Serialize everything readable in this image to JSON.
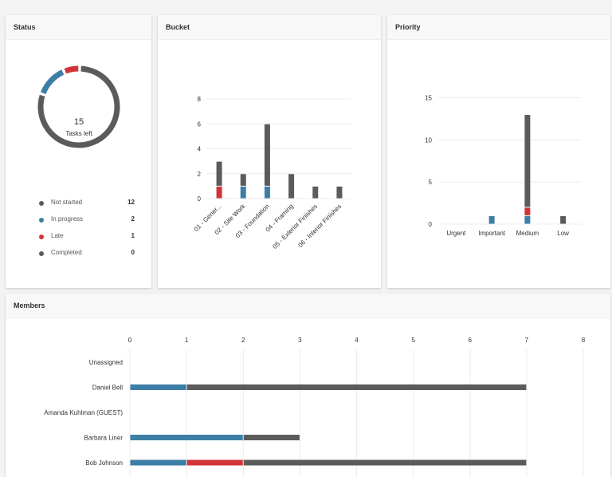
{
  "colors": {
    "not_started": "#5b5b5b",
    "in_progress": "#3d7ea6",
    "late": "#d13438",
    "completed": "#5b5b5b"
  },
  "status": {
    "title": "Status",
    "tasks_left_count": "15",
    "tasks_left_label": "Tasks left",
    "legend": [
      {
        "label": "Not started",
        "value": "12",
        "color_key": "not_started"
      },
      {
        "label": "In progress",
        "value": "2",
        "color_key": "in_progress"
      },
      {
        "label": "Late",
        "value": "1",
        "color_key": "late"
      },
      {
        "label": "Completed",
        "value": "0",
        "color_key": "completed"
      }
    ]
  },
  "bucket": {
    "title": "Bucket"
  },
  "priority": {
    "title": "Priority"
  },
  "members": {
    "title": "Members"
  },
  "chart_data": [
    {
      "type": "pie",
      "variant": "donut",
      "categories": [
        "Not started",
        "In progress",
        "Late",
        "Completed"
      ],
      "values": [
        12,
        2,
        1,
        0
      ]
    },
    {
      "type": "bar",
      "stacked": true,
      "categories": [
        "01 - Gener...",
        "02 - Site Work",
        "03 - Foundation",
        "04 - Framing",
        "05 - Exterior Finishes",
        "06 - Interior Finishes"
      ],
      "series": [
        {
          "status": "late",
          "values": [
            1,
            0,
            0,
            0,
            0,
            0
          ]
        },
        {
          "status": "in_progress",
          "values": [
            0,
            1,
            1,
            0,
            0,
            0
          ]
        },
        {
          "status": "not_started",
          "values": [
            2,
            1,
            5,
            2,
            1,
            1
          ]
        }
      ],
      "yticks": [
        0,
        2,
        4,
        6,
        8
      ],
      "ylim": [
        0,
        8
      ],
      "grid": true
    },
    {
      "type": "bar",
      "stacked": true,
      "categories": [
        "Urgent",
        "Important",
        "Medium",
        "Low"
      ],
      "series": [
        {
          "status": "in_progress",
          "values": [
            0,
            1,
            1,
            0
          ]
        },
        {
          "status": "late",
          "values": [
            0,
            0,
            1,
            0
          ]
        },
        {
          "status": "not_started",
          "values": [
            0,
            0,
            11,
            1
          ]
        }
      ],
      "yticks": [
        0,
        5,
        10,
        15
      ],
      "ylim": [
        0,
        17.5
      ],
      "grid": true
    },
    {
      "type": "bar",
      "orientation": "horizontal",
      "stacked": true,
      "categories": [
        "Unassigned",
        "Daniel Bell",
        "Amanda Kuhlman (GUEST)",
        "Barbara Liner",
        "Bob Johnson"
      ],
      "series": [
        {
          "status": "in_progress",
          "values": [
            0,
            1,
            0,
            2,
            1
          ]
        },
        {
          "status": "late",
          "values": [
            0,
            0,
            0,
            0,
            1
          ]
        },
        {
          "status": "not_started",
          "values": [
            0,
            6,
            0,
            1,
            5
          ]
        }
      ],
      "xticks": [
        0,
        1,
        2,
        3,
        4,
        5,
        6,
        7,
        8
      ],
      "xlim": [
        0,
        8
      ],
      "grid": true
    }
  ]
}
